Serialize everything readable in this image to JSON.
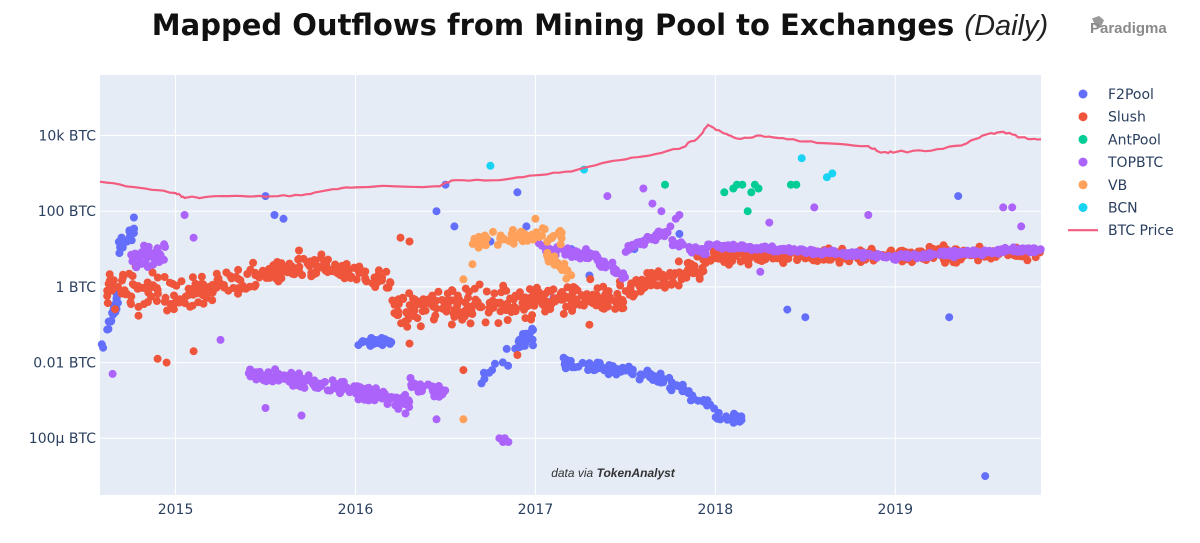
{
  "header": {
    "title": "Mapped Outflows from Mining Pool to Exchanges",
    "title_suffix": "(Daily)",
    "brand": "Paradigma"
  },
  "chart_data": {
    "type": "scatter",
    "title": "Mapped Outflows from Mining Pool to Exchanges (Daily)",
    "xlabel": "",
    "ylabel": "",
    "y_scale": "log",
    "xlim": [
      2014.58,
      2019.81
    ],
    "ylim_log10": [
      -5.5,
      5.6
    ],
    "grid": true,
    "legend_position": "right",
    "credit_prefix": "data via",
    "credit_source": "TokenAnalyst",
    "x_ticks": [
      {
        "value": 2015,
        "label": "2015"
      },
      {
        "value": 2016,
        "label": "2016"
      },
      {
        "value": 2017,
        "label": "2017"
      },
      {
        "value": 2018,
        "label": "2018"
      },
      {
        "value": 2019,
        "label": "2019"
      }
    ],
    "y_ticks": [
      {
        "log10": 4,
        "label": "10k BTC"
      },
      {
        "log10": 2,
        "label": "100 BTC"
      },
      {
        "log10": 0,
        "label": "1 BTC"
      },
      {
        "log10": -2,
        "label": "0.01 BTC"
      },
      {
        "log10": -4,
        "label": "100μ BTC"
      }
    ],
    "series": [
      {
        "name": "F2Pool",
        "color": "#636efa",
        "mode": "markers",
        "segments": [
          {
            "t0": 2014.59,
            "t1": 2014.68,
            "y0": -1.5,
            "y1": -0.3,
            "spread": 0.35,
            "n": 25
          },
          {
            "t0": 2014.68,
            "t1": 2014.78,
            "y0": 1.0,
            "y1": 1.6,
            "spread": 0.35,
            "n": 20
          },
          {
            "t0": 2016.0,
            "t1": 2016.2,
            "y0": -1.4,
            "y1": -1.5,
            "spread": 0.15,
            "n": 30
          },
          {
            "t0": 2016.7,
            "t1": 2017.0,
            "y0": -2.3,
            "y1": -1.2,
            "spread": 0.4,
            "n": 30
          },
          {
            "t0": 2017.15,
            "t1": 2017.6,
            "y0": -2.0,
            "y1": -2.3,
            "spread": 0.2,
            "n": 55
          },
          {
            "t0": 2017.6,
            "t1": 2018.0,
            "y0": -2.2,
            "y1": -3.2,
            "spread": 0.2,
            "n": 45
          },
          {
            "t0": 2018.0,
            "t1": 2018.15,
            "y0": -3.4,
            "y1": -3.5,
            "spread": 0.15,
            "n": 18
          }
        ],
        "points": [
          [
            2015.5,
            2.4
          ],
          [
            2015.55,
            1.9
          ],
          [
            2015.6,
            1.8
          ],
          [
            2016.45,
            2.0
          ],
          [
            2016.5,
            2.7
          ],
          [
            2016.55,
            1.6
          ],
          [
            2016.75,
            1.2
          ],
          [
            2016.9,
            2.5
          ],
          [
            2016.95,
            1.6
          ],
          [
            2017.1,
            -0.3
          ],
          [
            2017.2,
            1.0
          ],
          [
            2017.3,
            0.3
          ],
          [
            2017.55,
            1.0
          ],
          [
            2017.8,
            1.4
          ],
          [
            2018.4,
            -0.6
          ],
          [
            2018.5,
            -0.8
          ],
          [
            2019.3,
            -0.8
          ],
          [
            2019.35,
            2.4
          ],
          [
            2019.5,
            -5.0
          ]
        ]
      },
      {
        "name": "Slush",
        "color": "#ef553b",
        "mode": "markers",
        "segments": [
          {
            "t0": 2014.62,
            "t1": 2015.0,
            "y0": 0.0,
            "y1": -0.3,
            "spread": 0.8,
            "n": 60
          },
          {
            "t0": 2015.0,
            "t1": 2015.7,
            "y0": -0.3,
            "y1": 0.6,
            "spread": 0.5,
            "n": 110
          },
          {
            "t0": 2015.7,
            "t1": 2016.2,
            "y0": 0.6,
            "y1": 0.1,
            "spread": 0.45,
            "n": 80
          },
          {
            "t0": 2016.2,
            "t1": 2017.0,
            "y0": -0.6,
            "y1": -0.4,
            "spread": 0.7,
            "n": 150
          },
          {
            "t0": 2017.0,
            "t1": 2017.5,
            "y0": -0.3,
            "y1": -0.3,
            "spread": 0.55,
            "n": 100
          },
          {
            "t0": 2017.5,
            "t1": 2017.95,
            "y0": -0.1,
            "y1": 0.6,
            "spread": 0.4,
            "n": 80
          },
          {
            "t0": 2017.95,
            "t1": 2018.6,
            "y0": 0.8,
            "y1": 0.8,
            "spread": 0.25,
            "n": 110
          },
          {
            "t0": 2018.6,
            "t1": 2019.81,
            "y0": 0.8,
            "y1": 0.9,
            "spread": 0.3,
            "n": 180
          }
        ],
        "points": [
          [
            2014.9,
            -1.9
          ],
          [
            2014.95,
            -2.0
          ],
          [
            2015.1,
            -1.7
          ],
          [
            2016.3,
            -1.5
          ],
          [
            2016.6,
            -2.2
          ],
          [
            2016.9,
            -1.8
          ],
          [
            2016.25,
            1.3
          ],
          [
            2016.3,
            1.2
          ],
          [
            2017.3,
            -1.0
          ],
          [
            2017.9,
            0.8
          ]
        ]
      },
      {
        "name": "AntPool",
        "color": "#00cc96",
        "mode": "markers",
        "segments": [],
        "points": [
          [
            2017.72,
            2.7
          ],
          [
            2018.05,
            2.5
          ],
          [
            2018.1,
            2.6
          ],
          [
            2018.12,
            2.7
          ],
          [
            2018.15,
            2.7
          ],
          [
            2018.18,
            2.0
          ],
          [
            2018.2,
            2.5
          ],
          [
            2018.22,
            2.7
          ],
          [
            2018.24,
            2.6
          ],
          [
            2018.42,
            2.7
          ],
          [
            2018.45,
            2.7
          ]
        ]
      },
      {
        "name": "TOPBTC",
        "color": "#ab63fa",
        "mode": "markers",
        "segments": [
          {
            "t0": 2014.75,
            "t1": 2014.95,
            "y0": 0.7,
            "y1": 0.9,
            "spread": 0.4,
            "n": 35
          },
          {
            "t0": 2015.4,
            "t1": 2015.9,
            "y0": -2.3,
            "y1": -2.6,
            "spread": 0.25,
            "n": 80
          },
          {
            "t0": 2015.9,
            "t1": 2016.3,
            "y0": -2.6,
            "y1": -3.1,
            "spread": 0.3,
            "n": 70
          },
          {
            "t0": 2016.3,
            "t1": 2016.5,
            "y0": -2.6,
            "y1": -2.8,
            "spread": 0.25,
            "n": 30
          },
          {
            "t0": 2017.0,
            "t1": 2017.35,
            "y0": 1.0,
            "y1": 0.8,
            "spread": 0.2,
            "n": 50
          },
          {
            "t0": 2017.35,
            "t1": 2017.5,
            "y0": 0.7,
            "y1": 0.3,
            "spread": 0.2,
            "n": 20
          },
          {
            "t0": 2017.5,
            "t1": 2017.75,
            "y0": 1.0,
            "y1": 1.5,
            "spread": 0.15,
            "n": 40
          },
          {
            "t0": 2017.75,
            "t1": 2017.95,
            "y0": 1.2,
            "y1": 0.9,
            "spread": 0.15,
            "n": 35
          },
          {
            "t0": 2017.95,
            "t1": 2019.0,
            "y0": 1.1,
            "y1": 0.8,
            "spread": 0.1,
            "n": 180
          },
          {
            "t0": 2019.0,
            "t1": 2019.81,
            "y0": 0.8,
            "y1": 1.0,
            "spread": 0.12,
            "n": 130
          }
        ],
        "points": [
          [
            2014.65,
            -2.3
          ],
          [
            2015.05,
            1.9
          ],
          [
            2015.1,
            1.3
          ],
          [
            2015.25,
            -1.4
          ],
          [
            2015.5,
            -3.2
          ],
          [
            2015.7,
            -3.4
          ],
          [
            2016.45,
            -3.5
          ],
          [
            2016.8,
            -4.0
          ],
          [
            2016.82,
            -4.1
          ],
          [
            2016.83,
            -4.0
          ],
          [
            2016.85,
            -4.1
          ],
          [
            2017.4,
            2.4
          ],
          [
            2017.6,
            2.6
          ],
          [
            2017.65,
            2.2
          ],
          [
            2017.7,
            2.0
          ],
          [
            2017.75,
            1.6
          ],
          [
            2017.78,
            1.8
          ],
          [
            2017.8,
            1.9
          ],
          [
            2018.25,
            0.4
          ],
          [
            2018.3,
            1.7
          ],
          [
            2018.55,
            2.1
          ],
          [
            2018.85,
            1.9
          ],
          [
            2019.6,
            2.1
          ],
          [
            2019.65,
            2.1
          ],
          [
            2019.7,
            1.6
          ]
        ]
      },
      {
        "name": "VB",
        "color": "#ffa15a",
        "mode": "markers",
        "segments": [
          {
            "t0": 2016.65,
            "t1": 2017.15,
            "y0": 1.2,
            "y1": 1.4,
            "spread": 0.3,
            "n": 70
          },
          {
            "t0": 2017.05,
            "t1": 2017.2,
            "y0": 0.9,
            "y1": 0.3,
            "spread": 0.3,
            "n": 20
          }
        ],
        "points": [
          [
            2016.6,
            0.2
          ],
          [
            2016.65,
            0.6
          ],
          [
            2016.6,
            -3.5
          ],
          [
            2017.0,
            1.8
          ]
        ]
      },
      {
        "name": "BCN",
        "color": "#19d3f3",
        "mode": "markers",
        "segments": [],
        "points": [
          [
            2016.75,
            3.2
          ],
          [
            2017.27,
            3.1
          ],
          [
            2018.48,
            3.4
          ],
          [
            2018.62,
            2.9
          ],
          [
            2018.65,
            3.0
          ]
        ]
      },
      {
        "name": "BTC Price",
        "color": "#f35b7f",
        "mode": "lines",
        "line_points": [
          [
            2014.58,
            2.78
          ],
          [
            2014.8,
            2.62
          ],
          [
            2015.0,
            2.48
          ],
          [
            2015.05,
            2.35
          ],
          [
            2015.3,
            2.4
          ],
          [
            2015.5,
            2.38
          ],
          [
            2015.7,
            2.42
          ],
          [
            2015.85,
            2.56
          ],
          [
            2016.0,
            2.63
          ],
          [
            2016.45,
            2.66
          ],
          [
            2016.55,
            2.82
          ],
          [
            2016.8,
            2.82
          ],
          [
            2017.0,
            2.95
          ],
          [
            2017.2,
            3.05
          ],
          [
            2017.4,
            3.3
          ],
          [
            2017.6,
            3.45
          ],
          [
            2017.8,
            3.65
          ],
          [
            2017.9,
            3.92
          ],
          [
            2017.96,
            4.28
          ],
          [
            2018.05,
            4.05
          ],
          [
            2018.12,
            3.92
          ],
          [
            2018.25,
            4.0
          ],
          [
            2018.4,
            3.9
          ],
          [
            2018.6,
            3.8
          ],
          [
            2018.85,
            3.72
          ],
          [
            2018.92,
            3.55
          ],
          [
            2019.0,
            3.56
          ],
          [
            2019.2,
            3.6
          ],
          [
            2019.4,
            3.8
          ],
          [
            2019.5,
            4.02
          ],
          [
            2019.6,
            4.1
          ],
          [
            2019.7,
            3.95
          ],
          [
            2019.81,
            3.9
          ]
        ]
      }
    ]
  }
}
